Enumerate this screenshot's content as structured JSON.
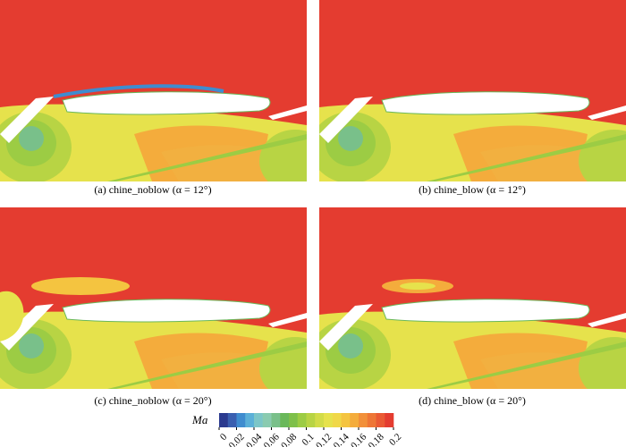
{
  "panels": [
    {
      "caption": "(a) chine_noblow (α = 12°)"
    },
    {
      "caption": "(b) chine_blow (α = 12°)"
    },
    {
      "caption": "(c) chine_noblow (α = 20°)"
    },
    {
      "caption": "(d) chine_blow (α = 20°)"
    }
  ],
  "colorbar": {
    "label": "Ma",
    "lim": [
      0,
      0.2
    ],
    "ticks": [
      0,
      0.02,
      0.04,
      0.06,
      0.08,
      0.1,
      0.12,
      0.14,
      0.16,
      0.18,
      0.2
    ],
    "colors": [
      "#2b3a8f",
      "#3a5fb0",
      "#3f8ccf",
      "#5bb0d8",
      "#7cc6c8",
      "#8acbb0",
      "#79c08a",
      "#6ab85a",
      "#7ec04a",
      "#9ccc44",
      "#b8d444",
      "#d2dc48",
      "#e6e24c",
      "#f0d848",
      "#f4c440",
      "#f4ac3c",
      "#f2903a",
      "#ee7636",
      "#ea5a34",
      "#e43c30"
    ]
  }
}
